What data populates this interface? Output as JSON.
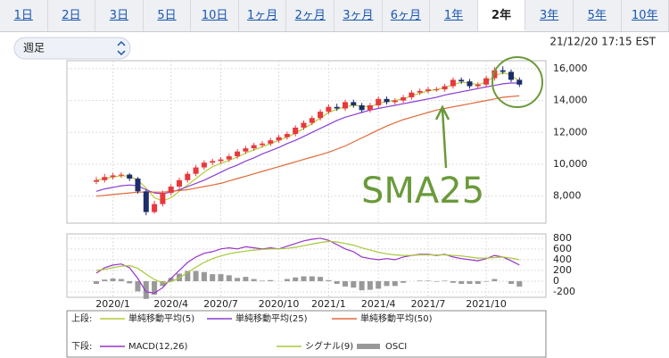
{
  "tabs": [
    "1日",
    "2日",
    "3日",
    "5日",
    "10日",
    "1ヶ月",
    "2ヶ月",
    "3ヶ月",
    "6ヶ月",
    "1年",
    "2年",
    "3年",
    "5年",
    "10年"
  ],
  "selected_tab": 10,
  "period_select": "週足",
  "timestamp": "21/12/20 17:15 EST",
  "chart_data": [
    {
      "type": "candlestick",
      "up_color": "#e8383d",
      "down_color": "#1d2d6b",
      "legend_title": "上段:",
      "annotation": "SMA25",
      "annotation_color": "#6a9a3a",
      "ylim": [
        6300,
        16500
      ],
      "yticks": [
        {
          "value": 8000,
          "label": "8,000"
        },
        {
          "value": 10000,
          "label": "10,000"
        },
        {
          "value": 12000,
          "label": "12,000"
        },
        {
          "value": 14000,
          "label": "14,000"
        },
        {
          "value": 16000,
          "label": "16,000"
        }
      ],
      "grid": true,
      "open": [
        8900,
        9000,
        9200,
        9300,
        9350,
        9100,
        8300,
        7000,
        7500,
        8200,
        8600,
        9000,
        9400,
        9800,
        10100,
        10200,
        10300,
        10500,
        10800,
        11000,
        11200,
        11300,
        11500,
        11700,
        11900,
        12300,
        12600,
        12900,
        13300,
        13600,
        13500,
        13900,
        13700,
        13400,
        13700,
        14100,
        13900,
        14000,
        14200,
        14500,
        14600,
        14700,
        14700,
        14900,
        15300,
        15200,
        14900,
        15000,
        15400,
        15900,
        15800,
        15300
      ],
      "high": [
        9200,
        9400,
        9450,
        9500,
        9450,
        9200,
        8400,
        7700,
        8350,
        8750,
        9150,
        9550,
        9950,
        10250,
        10350,
        10450,
        10650,
        10950,
        11150,
        11350,
        11450,
        11650,
        11850,
        12050,
        12450,
        12750,
        13050,
        13450,
        13750,
        13800,
        14050,
        14050,
        13850,
        13850,
        14250,
        14250,
        14150,
        14350,
        14650,
        14750,
        14850,
        14850,
        15050,
        15450,
        15450,
        15350,
        15150,
        15550,
        16100,
        16150,
        15950,
        15450
      ],
      "low": [
        8750,
        8850,
        9050,
        9150,
        8950,
        8150,
        6800,
        6900,
        7350,
        8050,
        8450,
        8850,
        9250,
        9650,
        9950,
        10050,
        10150,
        10350,
        10650,
        10850,
        11050,
        11150,
        11350,
        11550,
        11750,
        12150,
        12450,
        12750,
        13150,
        13350,
        13350,
        13550,
        13250,
        13250,
        13550,
        13750,
        13750,
        13850,
        14050,
        14350,
        14450,
        14550,
        14550,
        14750,
        15050,
        14750,
        14750,
        14850,
        15250,
        15650,
        15150,
        14850
      ],
      "close": [
        9000,
        9200,
        9300,
        9350,
        9100,
        8300,
        7000,
        7500,
        8200,
        8600,
        9000,
        9400,
        9800,
        10100,
        10200,
        10300,
        10500,
        10800,
        11000,
        11200,
        11300,
        11500,
        11700,
        11900,
        12300,
        12600,
        12900,
        13300,
        13600,
        13500,
        13900,
        13700,
        13400,
        13700,
        14100,
        13900,
        14000,
        14200,
        14500,
        14600,
        14700,
        14700,
        14900,
        15300,
        15200,
        14900,
        15000,
        15400,
        15900,
        15800,
        15300,
        15000
      ],
      "series": [
        {
          "name": "単純移動平均(5)",
          "color": "#b5cc3a",
          "values": [
            9000,
            9100,
            9200,
            9280,
            9250,
            9000,
            8500,
            7900,
            7700,
            7900,
            8300,
            8700,
            9100,
            9500,
            9850,
            10050,
            10250,
            10450,
            10700,
            10900,
            11100,
            11300,
            11500,
            11700,
            11950,
            12250,
            12550,
            12900,
            13250,
            13450,
            13600,
            13700,
            13650,
            13600,
            13800,
            13950,
            14000,
            14100,
            14300,
            14450,
            14600,
            14700,
            14800,
            15000,
            15150,
            15100,
            15000,
            15150,
            15550,
            15750,
            15600,
            15200
          ]
        },
        {
          "name": "単純移動平均(25)",
          "color": "#8a3fd1",
          "values": [
            8300,
            8450,
            8550,
            8650,
            8700,
            8650,
            8400,
            8200,
            8150,
            8250,
            8400,
            8600,
            8800,
            9000,
            9250,
            9500,
            9750,
            9950,
            10200,
            10400,
            10650,
            10850,
            11050,
            11300,
            11500,
            11750,
            12000,
            12250,
            12500,
            12750,
            12950,
            13100,
            13250,
            13400,
            13500,
            13600,
            13700,
            13800,
            13900,
            14000,
            14100,
            14200,
            14350,
            14450,
            14550,
            14650,
            14750,
            14850,
            14950,
            15050,
            15100,
            15100
          ]
        },
        {
          "name": "単純移動平均(50)",
          "color": "#e06a3a",
          "values": [
            8000,
            8050,
            8100,
            8150,
            8200,
            8250,
            8250,
            8250,
            8250,
            8300,
            8350,
            8400,
            8500,
            8600,
            8700,
            8800,
            8950,
            9100,
            9250,
            9400,
            9550,
            9700,
            9850,
            10000,
            10150,
            10300,
            10450,
            10600,
            10750,
            10950,
            11150,
            11400,
            11650,
            11900,
            12150,
            12400,
            12600,
            12800,
            12950,
            13100,
            13250,
            13400,
            13500,
            13600,
            13700,
            13800,
            13900,
            14000,
            14100,
            14200,
            14250,
            14300
          ]
        }
      ]
    },
    {
      "type": "line",
      "legend_title": "下段:",
      "ylim": [
        -300,
        880
      ],
      "yticks": [
        -200,
        0,
        200,
        400,
        600,
        800
      ],
      "grid": true,
      "categories": [
        null,
        null,
        "2020/1",
        null,
        null,
        null,
        null,
        null,
        null,
        "2020/4",
        null,
        null,
        null,
        null,
        null,
        "2020/7",
        null,
        null,
        null,
        null,
        null,
        null,
        "2020/10",
        null,
        null,
        null,
        null,
        null,
        "2021/1",
        null,
        null,
        null,
        null,
        null,
        "2021/4",
        null,
        null,
        null,
        null,
        null,
        "2021/7",
        null,
        null,
        null,
        null,
        null,
        null,
        "2021/10",
        null,
        null,
        null,
        null
      ],
      "series": [
        {
          "name": "MACD(12,26)",
          "color": "#9933cc",
          "values": [
            150,
            250,
            300,
            320,
            250,
            50,
            -200,
            -220,
            -120,
            50,
            200,
            350,
            450,
            520,
            550,
            600,
            620,
            600,
            640,
            620,
            600,
            620,
            600,
            650,
            700,
            750,
            780,
            800,
            760,
            680,
            600,
            550,
            450,
            420,
            400,
            420,
            400,
            450,
            480,
            500,
            500,
            480,
            500,
            450,
            420,
            400,
            380,
            420,
            480,
            450,
            380,
            300
          ]
        },
        {
          "name": "シグナル(9)",
          "color": "#a8c83a",
          "values": [
            200,
            220,
            250,
            280,
            290,
            240,
            130,
            30,
            -30,
            -10,
            60,
            160,
            260,
            350,
            420,
            470,
            510,
            540,
            560,
            580,
            590,
            600,
            600,
            610,
            630,
            660,
            690,
            720,
            740,
            730,
            700,
            670,
            620,
            580,
            540,
            510,
            490,
            480,
            480,
            490,
            490,
            490,
            490,
            480,
            470,
            450,
            430,
            430,
            440,
            450,
            430,
            400
          ]
        },
        {
          "name": "OSCI",
          "type": "bar",
          "color": "#999999",
          "values": [
            -50,
            30,
            50,
            40,
            -40,
            -190,
            -330,
            -250,
            -90,
            60,
            140,
            190,
            190,
            170,
            130,
            130,
            110,
            60,
            80,
            40,
            10,
            20,
            0,
            40,
            70,
            90,
            90,
            80,
            20,
            -50,
            -100,
            -120,
            -170,
            -160,
            -140,
            -90,
            -90,
            -30,
            0,
            10,
            10,
            -10,
            10,
            -30,
            -50,
            -50,
            -50,
            -10,
            40,
            0,
            -50,
            -100
          ]
        }
      ]
    }
  ]
}
